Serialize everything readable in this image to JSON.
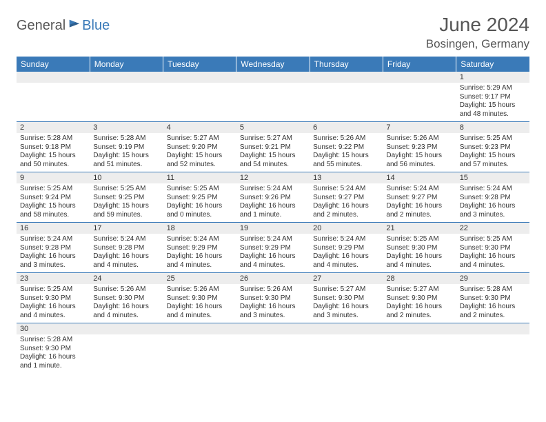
{
  "logo": {
    "text1": "General",
    "text2": "Blue"
  },
  "title": "June 2024",
  "location": "Bosingen, Germany",
  "colors": {
    "header_bg": "#3a7ab8",
    "header_text": "#ffffff",
    "daynum_bg": "#ededed",
    "border": "#3a7ab8",
    "text": "#333333",
    "title_text": "#555555"
  },
  "typography": {
    "title_fontsize": 28,
    "location_fontsize": 17,
    "dayheader_fontsize": 12,
    "daynum_fontsize": 11,
    "body_fontsize": 10
  },
  "dayHeaders": [
    "Sunday",
    "Monday",
    "Tuesday",
    "Wednesday",
    "Thursday",
    "Friday",
    "Saturday"
  ],
  "weeks": [
    [
      null,
      null,
      null,
      null,
      null,
      null,
      {
        "n": "1",
        "sr": "Sunrise: 5:29 AM",
        "ss": "Sunset: 9:17 PM",
        "dl": "Daylight: 15 hours and 48 minutes."
      }
    ],
    [
      {
        "n": "2",
        "sr": "Sunrise: 5:28 AM",
        "ss": "Sunset: 9:18 PM",
        "dl": "Daylight: 15 hours and 50 minutes."
      },
      {
        "n": "3",
        "sr": "Sunrise: 5:28 AM",
        "ss": "Sunset: 9:19 PM",
        "dl": "Daylight: 15 hours and 51 minutes."
      },
      {
        "n": "4",
        "sr": "Sunrise: 5:27 AM",
        "ss": "Sunset: 9:20 PM",
        "dl": "Daylight: 15 hours and 52 minutes."
      },
      {
        "n": "5",
        "sr": "Sunrise: 5:27 AM",
        "ss": "Sunset: 9:21 PM",
        "dl": "Daylight: 15 hours and 54 minutes."
      },
      {
        "n": "6",
        "sr": "Sunrise: 5:26 AM",
        "ss": "Sunset: 9:22 PM",
        "dl": "Daylight: 15 hours and 55 minutes."
      },
      {
        "n": "7",
        "sr": "Sunrise: 5:26 AM",
        "ss": "Sunset: 9:23 PM",
        "dl": "Daylight: 15 hours and 56 minutes."
      },
      {
        "n": "8",
        "sr": "Sunrise: 5:25 AM",
        "ss": "Sunset: 9:23 PM",
        "dl": "Daylight: 15 hours and 57 minutes."
      }
    ],
    [
      {
        "n": "9",
        "sr": "Sunrise: 5:25 AM",
        "ss": "Sunset: 9:24 PM",
        "dl": "Daylight: 15 hours and 58 minutes."
      },
      {
        "n": "10",
        "sr": "Sunrise: 5:25 AM",
        "ss": "Sunset: 9:25 PM",
        "dl": "Daylight: 15 hours and 59 minutes."
      },
      {
        "n": "11",
        "sr": "Sunrise: 5:25 AM",
        "ss": "Sunset: 9:25 PM",
        "dl": "Daylight: 16 hours and 0 minutes."
      },
      {
        "n": "12",
        "sr": "Sunrise: 5:24 AM",
        "ss": "Sunset: 9:26 PM",
        "dl": "Daylight: 16 hours and 1 minute."
      },
      {
        "n": "13",
        "sr": "Sunrise: 5:24 AM",
        "ss": "Sunset: 9:27 PM",
        "dl": "Daylight: 16 hours and 2 minutes."
      },
      {
        "n": "14",
        "sr": "Sunrise: 5:24 AM",
        "ss": "Sunset: 9:27 PM",
        "dl": "Daylight: 16 hours and 2 minutes."
      },
      {
        "n": "15",
        "sr": "Sunrise: 5:24 AM",
        "ss": "Sunset: 9:28 PM",
        "dl": "Daylight: 16 hours and 3 minutes."
      }
    ],
    [
      {
        "n": "16",
        "sr": "Sunrise: 5:24 AM",
        "ss": "Sunset: 9:28 PM",
        "dl": "Daylight: 16 hours and 3 minutes."
      },
      {
        "n": "17",
        "sr": "Sunrise: 5:24 AM",
        "ss": "Sunset: 9:28 PM",
        "dl": "Daylight: 16 hours and 4 minutes."
      },
      {
        "n": "18",
        "sr": "Sunrise: 5:24 AM",
        "ss": "Sunset: 9:29 PM",
        "dl": "Daylight: 16 hours and 4 minutes."
      },
      {
        "n": "19",
        "sr": "Sunrise: 5:24 AM",
        "ss": "Sunset: 9:29 PM",
        "dl": "Daylight: 16 hours and 4 minutes."
      },
      {
        "n": "20",
        "sr": "Sunrise: 5:24 AM",
        "ss": "Sunset: 9:29 PM",
        "dl": "Daylight: 16 hours and 4 minutes."
      },
      {
        "n": "21",
        "sr": "Sunrise: 5:25 AM",
        "ss": "Sunset: 9:30 PM",
        "dl": "Daylight: 16 hours and 4 minutes."
      },
      {
        "n": "22",
        "sr": "Sunrise: 5:25 AM",
        "ss": "Sunset: 9:30 PM",
        "dl": "Daylight: 16 hours and 4 minutes."
      }
    ],
    [
      {
        "n": "23",
        "sr": "Sunrise: 5:25 AM",
        "ss": "Sunset: 9:30 PM",
        "dl": "Daylight: 16 hours and 4 minutes."
      },
      {
        "n": "24",
        "sr": "Sunrise: 5:26 AM",
        "ss": "Sunset: 9:30 PM",
        "dl": "Daylight: 16 hours and 4 minutes."
      },
      {
        "n": "25",
        "sr": "Sunrise: 5:26 AM",
        "ss": "Sunset: 9:30 PM",
        "dl": "Daylight: 16 hours and 4 minutes."
      },
      {
        "n": "26",
        "sr": "Sunrise: 5:26 AM",
        "ss": "Sunset: 9:30 PM",
        "dl": "Daylight: 16 hours and 3 minutes."
      },
      {
        "n": "27",
        "sr": "Sunrise: 5:27 AM",
        "ss": "Sunset: 9:30 PM",
        "dl": "Daylight: 16 hours and 3 minutes."
      },
      {
        "n": "28",
        "sr": "Sunrise: 5:27 AM",
        "ss": "Sunset: 9:30 PM",
        "dl": "Daylight: 16 hours and 2 minutes."
      },
      {
        "n": "29",
        "sr": "Sunrise: 5:28 AM",
        "ss": "Sunset: 9:30 PM",
        "dl": "Daylight: 16 hours and 2 minutes."
      }
    ],
    [
      {
        "n": "30",
        "sr": "Sunrise: 5:28 AM",
        "ss": "Sunset: 9:30 PM",
        "dl": "Daylight: 16 hours and 1 minute."
      },
      null,
      null,
      null,
      null,
      null,
      null
    ]
  ]
}
